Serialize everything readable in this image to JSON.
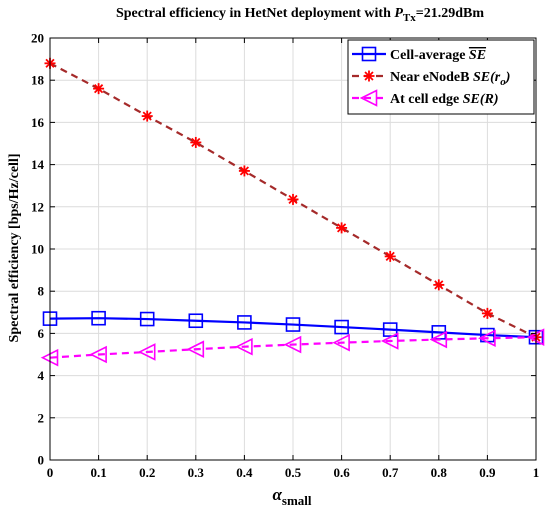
{
  "chart_data": {
    "type": "line",
    "title": {
      "prefix": "Spectral efficiency in HetNet deployment with ",
      "var": "P",
      "var_sub": "Tx",
      "suffix": "=21.29dBm"
    },
    "xlabel": {
      "main": "α",
      "sub": "small"
    },
    "ylabel": "Spectral efficiency [bps/Hz/cell]",
    "xlim": [
      0,
      1
    ],
    "ylim": [
      0,
      20
    ],
    "xticks": [
      "0",
      "0.1",
      "0.2",
      "0.3",
      "0.4",
      "0.5",
      "0.6",
      "0.7",
      "0.8",
      "0.9",
      "1"
    ],
    "yticks": [
      "0",
      "2",
      "4",
      "6",
      "8",
      "10",
      "12",
      "14",
      "16",
      "18",
      "20"
    ],
    "grid": true,
    "legend_position": "top-right",
    "x": [
      0,
      0.1,
      0.2,
      0.3,
      0.4,
      0.5,
      0.6,
      0.7,
      0.8,
      0.9,
      1.0
    ],
    "series": [
      {
        "name": "Cell-average SE",
        "legend": {
          "text": "Cell-average ",
          "italic": "SE",
          "overline": true,
          "tail": ""
        },
        "color": "#0000ff",
        "marker": "square",
        "dash": "solid",
        "values": [
          6.7,
          6.72,
          6.68,
          6.6,
          6.52,
          6.42,
          6.3,
          6.18,
          6.05,
          5.92,
          5.82
        ]
      },
      {
        "name": "Near eNodeB SE(r0)",
        "legend": {
          "text": "Near eNodeB ",
          "italic": "SE",
          "overline": false,
          "tail": "(r",
          "tail_sub": "o",
          "tail_end": ")"
        },
        "color": "#a52a2a",
        "marker_color": "#ff0000",
        "marker": "star",
        "dash": "dashed",
        "values": [
          18.8,
          17.6,
          16.3,
          15.05,
          13.7,
          12.35,
          11.0,
          9.65,
          8.3,
          6.95,
          5.82
        ]
      },
      {
        "name": "At cell edge SE(R)",
        "legend": {
          "text": "At cell edge ",
          "italic": "SE",
          "overline": false,
          "tail": "(R)"
        },
        "color": "#ff00ff",
        "marker": "triangle-left",
        "dash": "dashed",
        "values": [
          4.85,
          5.0,
          5.12,
          5.25,
          5.37,
          5.47,
          5.56,
          5.64,
          5.71,
          5.77,
          5.82
        ]
      }
    ]
  }
}
